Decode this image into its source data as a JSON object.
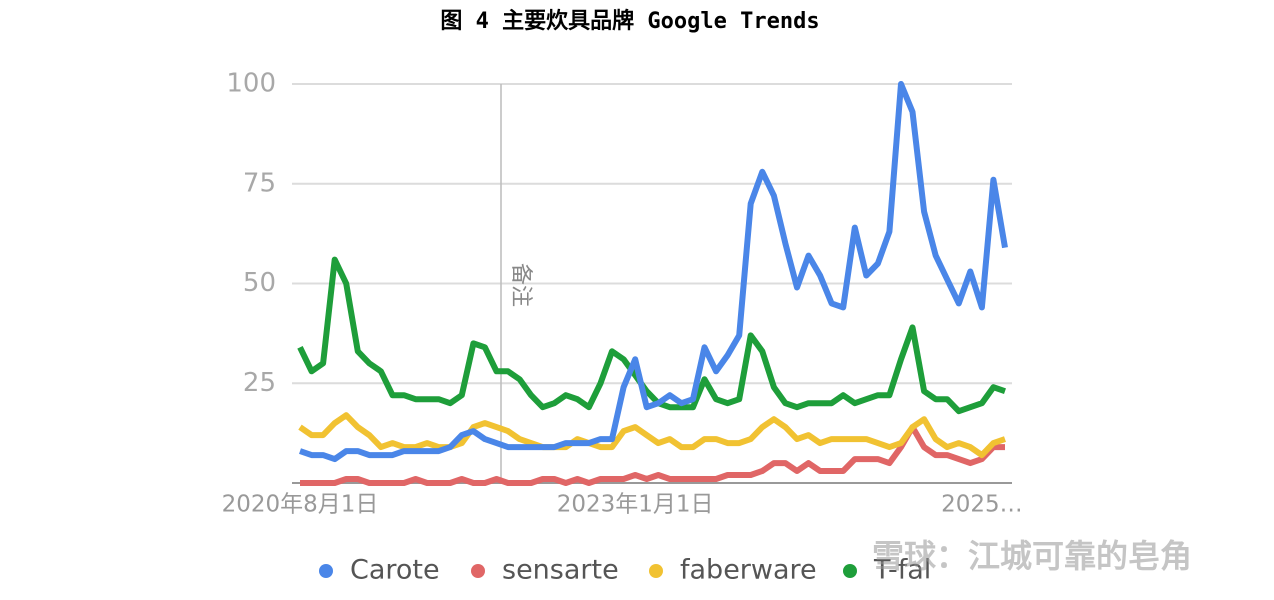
{
  "chart_data": {
    "type": "line",
    "title": "图 4 主要炊具品牌 Google Trends",
    "annotation": "备注",
    "watermark": "雪球：江城可靠的皂角",
    "categories": [
      "2020年8月1日",
      null,
      null,
      null,
      null,
      null,
      null,
      null,
      null,
      null,
      null,
      null,
      null,
      null,
      null,
      null,
      null,
      null,
      null,
      null,
      null,
      null,
      null,
      null,
      null,
      null,
      null,
      null,
      null,
      "2023年1月1日",
      null,
      null,
      null,
      null,
      null,
      null,
      null,
      null,
      null,
      null,
      null,
      null,
      null,
      null,
      null,
      null,
      null,
      null,
      null,
      null,
      null,
      null,
      null,
      null,
      null,
      null,
      null,
      null,
      null,
      "2025…",
      null,
      null
    ],
    "series": [
      {
        "name": "Carote",
        "color": "#4a86e8",
        "values": [
          8,
          7,
          7,
          6,
          8,
          8,
          7,
          7,
          7,
          8,
          8,
          8,
          8,
          9,
          12,
          13,
          11,
          10,
          9,
          9,
          9,
          9,
          9,
          10,
          10,
          10,
          11,
          11,
          24,
          31,
          19,
          20,
          22,
          20,
          21,
          34,
          28,
          32,
          37,
          70,
          78,
          72,
          60,
          49,
          57,
          52,
          45,
          44,
          64,
          52,
          55,
          63,
          100,
          93,
          68,
          57,
          51,
          45,
          53,
          44,
          76,
          59
        ]
      },
      {
        "name": "sensarte",
        "color": "#e06666",
        "values": [
          0,
          0,
          0,
          0,
          1,
          1,
          0,
          0,
          0,
          0,
          1,
          0,
          0,
          0,
          1,
          0,
          0,
          1,
          0,
          0,
          0,
          1,
          1,
          0,
          1,
          0,
          1,
          1,
          1,
          2,
          1,
          2,
          1,
          1,
          1,
          1,
          1,
          2,
          2,
          2,
          3,
          5,
          5,
          3,
          5,
          3,
          3,
          3,
          6,
          6,
          6,
          5,
          9,
          14,
          9,
          7,
          7,
          6,
          5,
          6,
          9,
          9
        ]
      },
      {
        "name": "faberware",
        "color": "#f1c232",
        "values": [
          14,
          12,
          12,
          15,
          17,
          14,
          12,
          9,
          10,
          9,
          9,
          10,
          9,
          9,
          10,
          14,
          15,
          14,
          13,
          11,
          10,
          9,
          9,
          9,
          11,
          10,
          9,
          9,
          13,
          14,
          12,
          10,
          11,
          9,
          9,
          11,
          11,
          10,
          10,
          11,
          14,
          16,
          14,
          11,
          12,
          10,
          11,
          11,
          11,
          11,
          10,
          9,
          10,
          14,
          16,
          11,
          9,
          10,
          9,
          7,
          10,
          11
        ]
      },
      {
        "name": "T-fal",
        "color": "#1e9e3a",
        "values": [
          34,
          28,
          30,
          56,
          50,
          33,
          30,
          28,
          22,
          22,
          21,
          21,
          21,
          20,
          22,
          35,
          34,
          28,
          28,
          26,
          22,
          19,
          20,
          22,
          21,
          19,
          25,
          33,
          31,
          27,
          23,
          20,
          19,
          19,
          19,
          26,
          21,
          20,
          21,
          37,
          33,
          24,
          20,
          19,
          20,
          20,
          20,
          22,
          20,
          21,
          22,
          22,
          31,
          39,
          23,
          21,
          21,
          18,
          19,
          20,
          24,
          23
        ]
      }
    ],
    "ylim": [
      0,
      100
    ],
    "yticks": [
      25,
      50,
      75,
      100
    ],
    "grid": true,
    "legend": "bottom"
  }
}
